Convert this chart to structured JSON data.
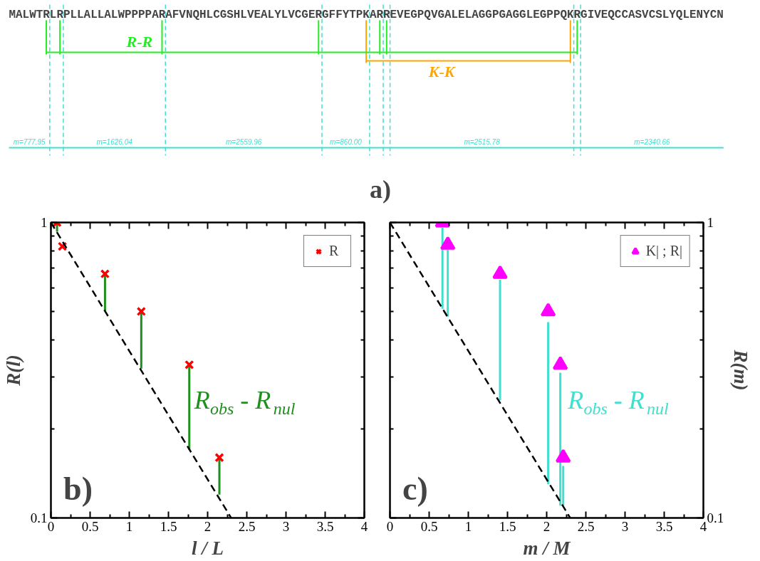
{
  "chart_data": [
    {
      "type": "other",
      "title": "a)",
      "annotations": [
        "MALWTRLRPLLALLALWPPPPARAFVNQHLCGSHLVEALYLVCGERGFFYTPKARREVEGPQVGALELAGGPGAGGLEGPPQKRGIVEQCCASVCSLYQLENYCN",
        "R-R",
        "K-K",
        "m=777.95",
        "m=1626.04",
        "m=2559.96",
        "m=860.00",
        "m=2515.78",
        "m=2340.66"
      ]
    },
    {
      "type": "scatter",
      "title": "b)",
      "xlabel": "l / L",
      "ylabel": "R(l)",
      "log": "y",
      "legend": "top right",
      "xlim": [
        0,
        4
      ],
      "xticks": [
        0,
        {
          "value": 0.25,
          "label": null
        },
        0.5,
        {
          "value": 0.75,
          "label": null
        },
        1,
        {
          "value": 1.25,
          "label": null
        },
        1.5,
        {
          "value": 1.75,
          "label": null
        },
        2,
        {
          "value": 2.25,
          "label": null
        },
        2.5,
        {
          "value": 2.75,
          "label": null
        },
        3,
        {
          "value": 3.25,
          "label": null
        },
        3.5,
        {
          "value": 3.75,
          "label": null
        },
        4
      ],
      "ylim": [
        0.1,
        1
      ],
      "yticks": [
        0.1,
        {
          "value": 0.2,
          "label": null
        },
        {
          "value": 0.3,
          "label": null
        },
        {
          "value": 0.4,
          "label": null
        },
        {
          "value": 0.5,
          "label": null
        },
        {
          "value": 0.6,
          "label": null
        },
        {
          "value": 0.7,
          "label": null
        },
        {
          "value": 0.8,
          "label": null
        },
        {
          "value": 0.9,
          "label": null
        },
        1
      ],
      "series": [
        {
          "name": "R",
          "color": "#ff0000",
          "marker": "cross",
          "x": [
            0.078,
            0.146,
            0.69,
            1.153,
            1.766,
            2.15
          ],
          "values": [
            1,
            0.83,
            0.67,
            0.5,
            0.33,
            0.16
          ],
          "errors": [
            [
              0.93,
              1
            ],
            null,
            [
              0.5,
              0.67
            ],
            [
              0.32,
              0.5
            ],
            [
              0.17,
              0.33
            ],
            [
              0.12,
              0.16
            ]
          ]
        },
        {
          "type": "line",
          "color": "#000000",
          "line_style": "dashed",
          "x": [
            0,
            2.3
          ],
          "values": [
            1,
            0.1
          ]
        }
      ],
      "annotations": [
        "R$_{obs}$ - R$_{nul}$"
      ]
    },
    {
      "type": "scatter",
      "title": "c)",
      "xlabel": "m / M",
      "y2label": "R(m)",
      "log": "y2",
      "legend": "top right",
      "xlim": [
        0,
        4
      ],
      "xticks": [
        0,
        {
          "value": 0.25,
          "label": null
        },
        0.5,
        {
          "value": 0.75,
          "label": null
        },
        1,
        {
          "value": 1.25,
          "label": null
        },
        1.5,
        {
          "value": 1.75,
          "label": null
        },
        2,
        {
          "value": 2.25,
          "label": null
        },
        2.5,
        {
          "value": 2.75,
          "label": null
        },
        3,
        {
          "value": 3.25,
          "label": null
        },
        3.5,
        {
          "value": 3.75,
          "label": null
        },
        4
      ],
      "y2lim": [
        0.1,
        1
      ],
      "y2ticks": [
        0.1,
        {
          "value": 0.2,
          "label": null
        },
        {
          "value": 0.3,
          "label": null
        },
        {
          "value": 0.4,
          "label": null
        },
        {
          "value": 0.5,
          "label": null
        },
        {
          "value": 0.6,
          "label": null
        },
        {
          "value": 0.7,
          "label": null
        },
        {
          "value": 0.8,
          "label": null
        },
        {
          "value": 0.9,
          "label": null
        },
        1
      ],
      "series": [
        {
          "name": "K| ; R|",
          "color": "#ff00ff",
          "marker": "triangle",
          "axis": "y2",
          "x": [
            0.67,
            0.738,
            1.405,
            2.019,
            2.174,
            2.211
          ],
          "values": [
            1,
            0.84,
            0.67,
            0.5,
            0.33,
            0.16
          ],
          "errors": [
            [
              0.51,
              0.96
            ],
            [
              0.48,
              0.81
            ],
            [
              0.25,
              0.64
            ],
            [
              0.13,
              0.46
            ],
            [
              0.11,
              0.31
            ],
            [
              0.11,
              0.15
            ]
          ]
        },
        {
          "type": "line",
          "color": "#000000",
          "line_style": "dashed",
          "axis": "y2",
          "x": [
            0,
            2.3
          ],
          "values": [
            1,
            0.1
          ]
        }
      ],
      "annotations": [
        "R$_{obs}$ - R$_{nul}$"
      ]
    }
  ]
}
